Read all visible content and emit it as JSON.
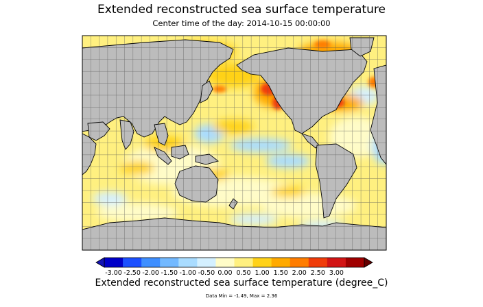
{
  "title": "Extended reconstructed sea surface temperature",
  "subtitle": "Center time of the day: 2014-10-15 00:00:00",
  "colorbar": {
    "title": "Extended reconstructed sea surface temperature (degree_C)",
    "ticks": [
      "-3.00",
      "-2.50",
      "-2.00",
      "-1.50",
      "-1.00",
      "-0.50",
      "0.00",
      "0.50",
      "1.00",
      "1.50",
      "2.00",
      "2.50",
      "3.00"
    ],
    "colors": [
      "#0000c8",
      "#1c50ff",
      "#3f8fff",
      "#73b9ff",
      "#a9dcff",
      "#d4f0ff",
      "#fffcc8",
      "#fff080",
      "#ffd219",
      "#ffaa00",
      "#ff7d00",
      "#f03c0a",
      "#d21414",
      "#a00000"
    ],
    "under_color": "#1414b4",
    "over_color": "#640000"
  },
  "stats": "Data Min = -1.49, Max = 2.36",
  "map": {
    "land_color": "#bcbcbc",
    "ocean_base_color": "#fff080",
    "center_longitude": 180,
    "grid_spacing_degrees": 10
  }
}
